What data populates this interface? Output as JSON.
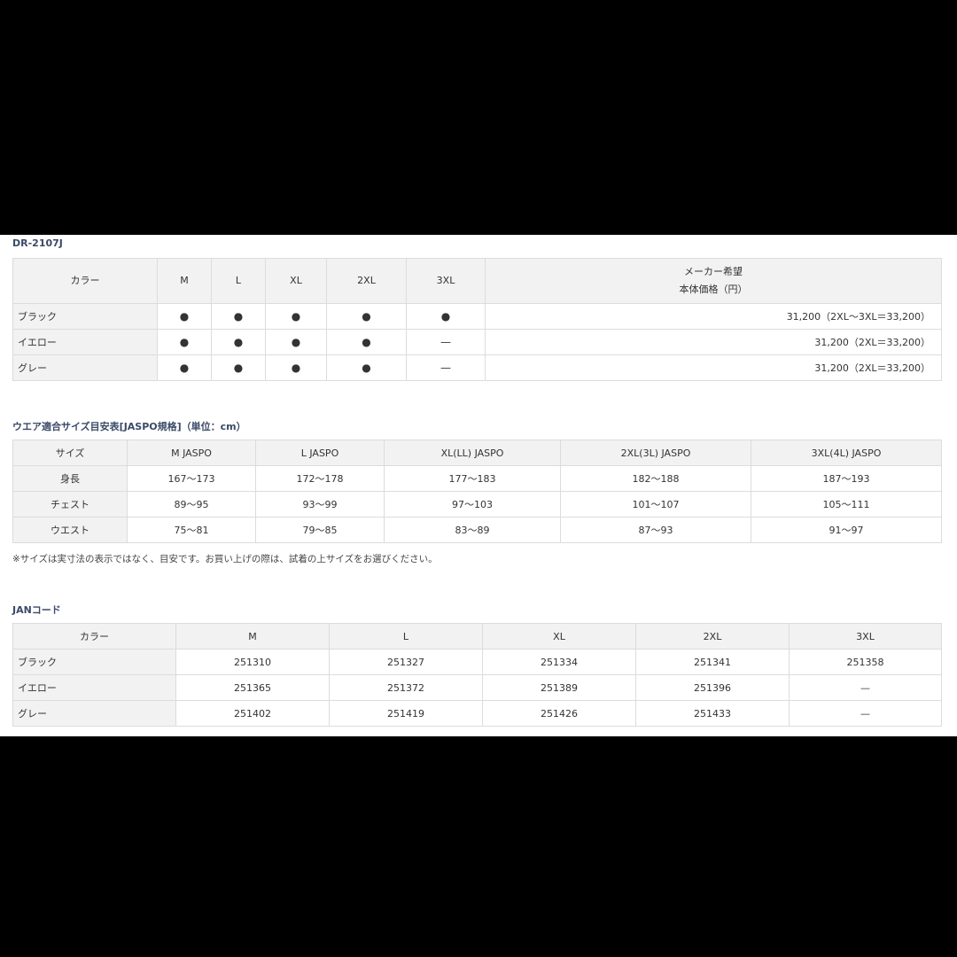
{
  "model_table": {
    "title": "DR-2107J",
    "headers": [
      "カラー",
      "M",
      "L",
      "XL",
      "2XL",
      "3XL"
    ],
    "price_header_line1": "メーカー希望",
    "price_header_line2": "本体価格（円）",
    "rows": [
      {
        "color": "ブラック",
        "cells": [
          "●",
          "●",
          "●",
          "●",
          "●"
        ],
        "price": "31,200（2XL〜3XL＝33,200）"
      },
      {
        "color": "イエロー",
        "cells": [
          "●",
          "●",
          "●",
          "●",
          "—"
        ],
        "price": "31,200（2XL＝33,200）"
      },
      {
        "color": "グレー",
        "cells": [
          "●",
          "●",
          "●",
          "●",
          "—"
        ],
        "price": "31,200（2XL＝33,200）"
      }
    ]
  },
  "size_table": {
    "title": "ウエア適合サイズ目安表[JASPO規格]（単位：cm）",
    "headers": [
      "サイズ",
      "M JASPO",
      "L JASPO",
      "XL(LL) JASPO",
      "2XL(3L) JASPO",
      "3XL(4L) JASPO"
    ],
    "rows": [
      {
        "label": "身長",
        "cells": [
          "167〜173",
          "172〜178",
          "177〜183",
          "182〜188",
          "187〜193"
        ]
      },
      {
        "label": "チェスト",
        "cells": [
          "89〜95",
          "93〜99",
          "97〜103",
          "101〜107",
          "105〜111"
        ]
      },
      {
        "label": "ウエスト",
        "cells": [
          "75〜81",
          "79〜85",
          "83〜89",
          "87〜93",
          "91〜97"
        ]
      }
    ],
    "note": "※サイズは実寸法の表示ではなく、目安です。お買い上げの際は、試着の上サイズをお選びください。"
  },
  "jan_table": {
    "title": "JANコード",
    "headers": [
      "カラー",
      "M",
      "L",
      "XL",
      "2XL",
      "3XL"
    ],
    "rows": [
      {
        "color": "ブラック",
        "cells": [
          "251310",
          "251327",
          "251334",
          "251341",
          "251358"
        ]
      },
      {
        "color": "イエロー",
        "cells": [
          "251365",
          "251372",
          "251389",
          "251396",
          "—"
        ]
      },
      {
        "color": "グレー",
        "cells": [
          "251402",
          "251419",
          "251426",
          "251433",
          "—"
        ]
      }
    ]
  },
  "colors": {
    "heading": "#3b4a68",
    "header_bg": "#f2f2f2",
    "border": "#dcdcdc",
    "backdrop": "#000000"
  }
}
